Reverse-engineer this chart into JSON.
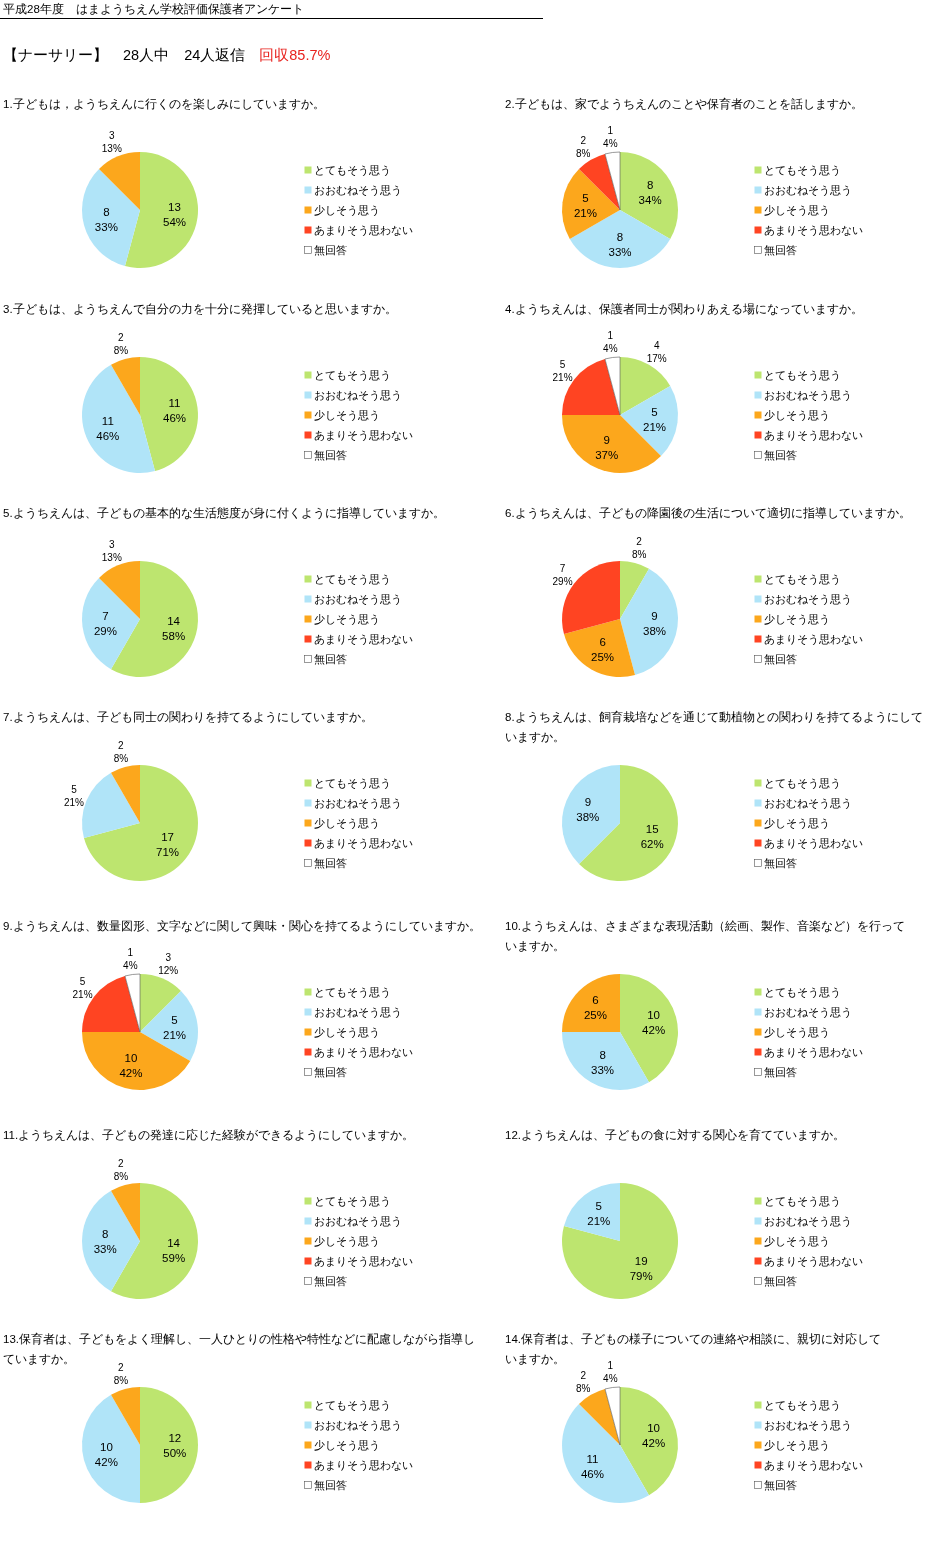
{
  "chart_data": [
    {
      "type": "other",
      "title": "平成28年度　はまようちえん学校評価保護者アンケート",
      "subtitle": "【ナーサリー】　28人中　24人返信",
      "annotations": [
        "回収85.7%"
      ]
    },
    {
      "type": "pie",
      "title": "1.子どもは，ようちえんに行くのを楽しみにしていますか。",
      "categories": [
        "とてもそう思う",
        "おおむねそう思う",
        "少しそう思う",
        "あまりそう思わない",
        "無回答"
      ],
      "values": [
        13,
        8,
        3,
        0,
        0
      ],
      "colors": [
        "#bde56f",
        "#b0e4f8",
        "#fca71c",
        "#ff4422",
        "#ffffff"
      ],
      "value_labels": [
        "13\n54%",
        "8\n33%",
        "3\n13%",
        null,
        null
      ],
      "legend": "right"
    },
    {
      "type": "pie",
      "title": "2.子どもは、家でようちえんのことや保育者のことを話しますか。",
      "categories": [
        "とてもそう思う",
        "おおむねそう思う",
        "少しそう思う",
        "あまりそう思わない",
        "無回答"
      ],
      "values": [
        8,
        8,
        5,
        2,
        1
      ],
      "colors": [
        "#bde56f",
        "#b0e4f8",
        "#fca71c",
        "#ff4422",
        "#ffffff"
      ],
      "value_labels": [
        "8\n34%",
        "8\n33%",
        "5\n21%",
        "2\n8%",
        "1\n4%"
      ],
      "legend": "right"
    },
    {
      "type": "pie",
      "title": "3.子どもは、ようちえんで自分の力を十分に発揮していると思いますか。",
      "categories": [
        "とてもそう思う",
        "おおむねそう思う",
        "少しそう思う",
        "あまりそう思わない",
        "無回答"
      ],
      "values": [
        11,
        11,
        2,
        0,
        0
      ],
      "colors": [
        "#bde56f",
        "#b0e4f8",
        "#fca71c",
        "#ff4422",
        "#ffffff"
      ],
      "value_labels": [
        "11\n46%",
        "11\n46%",
        "2\n8%",
        null,
        null
      ],
      "legend": "right"
    },
    {
      "type": "pie",
      "title": "4.ようちえんは、保護者同士が関わりあえる場になっていますか。",
      "categories": [
        "とてもそう思う",
        "おおむねそう思う",
        "少しそう思う",
        "あまりそう思わない",
        "無回答"
      ],
      "values": [
        4,
        5,
        9,
        5,
        1
      ],
      "colors": [
        "#bde56f",
        "#b0e4f8",
        "#fca71c",
        "#ff4422",
        "#ffffff"
      ],
      "value_labels": [
        "4\n17%",
        "5\n21%",
        "9\n37%",
        "5\n21%",
        "1\n4%"
      ],
      "legend": "right"
    },
    {
      "type": "pie",
      "title": "5.ようちえんは、子どもの基本的な生活態度が身に付くように指導していますか。",
      "categories": [
        "とてもそう思う",
        "おおむねそう思う",
        "少しそう思う",
        "あまりそう思わない",
        "無回答"
      ],
      "values": [
        14,
        7,
        3,
        0,
        0
      ],
      "colors": [
        "#bde56f",
        "#b0e4f8",
        "#fca71c",
        "#ff4422",
        "#ffffff"
      ],
      "value_labels": [
        "14\n58%",
        "7\n29%",
        "3\n13%",
        null,
        null
      ],
      "legend": "right"
    },
    {
      "type": "pie",
      "title": "6.ようちえんは、子どもの降園後の生活について適切に指導していますか。",
      "categories": [
        "とてもそう思う",
        "おおむねそう思う",
        "少しそう思う",
        "あまりそう思わない",
        "無回答"
      ],
      "values": [
        2,
        9,
        6,
        7,
        0
      ],
      "colors": [
        "#bde56f",
        "#b0e4f8",
        "#fca71c",
        "#ff4422",
        "#ffffff"
      ],
      "value_labels": [
        "2\n8%",
        "9\n38%",
        "6\n25%",
        "7\n29%",
        null
      ],
      "legend": "right"
    },
    {
      "type": "pie",
      "title": "7.ようちえんは、子ども同士の関わりを持てるようにしていますか。",
      "categories": [
        "とてもそう思う",
        "おおむねそう思う",
        "少しそう思う",
        "あまりそう思わない",
        "無回答"
      ],
      "values": [
        17,
        5,
        2,
        0,
        0
      ],
      "colors": [
        "#bde56f",
        "#b0e4f8",
        "#fca71c",
        "#ff4422",
        "#ffffff"
      ],
      "value_labels": [
        "17\n71%",
        "5\n21%",
        "2\n8%",
        null,
        null
      ],
      "legend": "right"
    },
    {
      "type": "pie",
      "title": "8.ようちえんは、飼育栽培などを通じて動植物との関わりを持てるようにしていますか。",
      "categories": [
        "とてもそう思う",
        "おおむねそう思う",
        "少しそう思う",
        "あまりそう思わない",
        "無回答"
      ],
      "values": [
        15,
        9,
        0,
        0,
        0
      ],
      "colors": [
        "#bde56f",
        "#b0e4f8",
        "#fca71c",
        "#ff4422",
        "#ffffff"
      ],
      "value_labels": [
        "15\n62%",
        "9\n38%",
        null,
        null,
        null
      ],
      "legend": "right"
    },
    {
      "type": "pie",
      "title": "9.ようちえんは、数量図形、文字などに関して興味・関心を持てるようにしていますか。",
      "categories": [
        "とてもそう思う",
        "おおむねそう思う",
        "少しそう思う",
        "あまりそう思わない",
        "無回答"
      ],
      "values": [
        3,
        5,
        10,
        5,
        1
      ],
      "colors": [
        "#bde56f",
        "#b0e4f8",
        "#fca71c",
        "#ff4422",
        "#ffffff"
      ],
      "value_labels": [
        "3\n12%",
        "5\n21%",
        "10\n42%",
        "5\n21%",
        "1\n4%"
      ],
      "legend": "right"
    },
    {
      "type": "pie",
      "title": "10.ようちえんは、さまざまな表現活動（絵画、製作、音楽など）を行っていますか。",
      "categories": [
        "とてもそう思う",
        "おおむねそう思う",
        "少しそう思う",
        "あまりそう思わない",
        "無回答"
      ],
      "values": [
        10,
        8,
        6,
        0,
        0
      ],
      "colors": [
        "#bde56f",
        "#b0e4f8",
        "#fca71c",
        "#ff4422",
        "#ffffff"
      ],
      "value_labels": [
        "10\n42%",
        "8\n33%",
        "6\n25%",
        null,
        null
      ],
      "legend": "right"
    },
    {
      "type": "pie",
      "title": "11.ようちえんは、子どもの発達に応じた経験ができるようにしていますか。",
      "categories": [
        "とてもそう思う",
        "おおむねそう思う",
        "少しそう思う",
        "あまりそう思わない",
        "無回答"
      ],
      "values": [
        14,
        8,
        2,
        0,
        0
      ],
      "colors": [
        "#bde56f",
        "#b0e4f8",
        "#fca71c",
        "#ff4422",
        "#ffffff"
      ],
      "value_labels": [
        "14\n59%",
        "8\n33%",
        "2\n8%",
        null,
        null
      ],
      "legend": "right"
    },
    {
      "type": "pie",
      "title": "12.ようちえんは、子どもの食に対する関心を育てていますか。",
      "categories": [
        "とてもそう思う",
        "おおむねそう思う",
        "少しそう思う",
        "あまりそう思わない",
        "無回答"
      ],
      "values": [
        19,
        5,
        0,
        0,
        0
      ],
      "colors": [
        "#bde56f",
        "#b0e4f8",
        "#fca71c",
        "#ff4422",
        "#ffffff"
      ],
      "value_labels": [
        "19\n79%",
        "5\n21%",
        null,
        null,
        null
      ],
      "legend": "right"
    },
    {
      "type": "pie",
      "title": "13.保育者は、子どもをよく理解し、一人ひとりの性格や特性などに配慮しながら指導していますか。",
      "categories": [
        "とてもそう思う",
        "おおむねそう思う",
        "少しそう思う",
        "あまりそう思わない",
        "無回答"
      ],
      "values": [
        12,
        10,
        2,
        0,
        0
      ],
      "colors": [
        "#bde56f",
        "#b0e4f8",
        "#fca71c",
        "#ff4422",
        "#ffffff"
      ],
      "value_labels": [
        "12\n50%",
        "10\n42%",
        "2\n8%",
        null,
        null
      ],
      "legend": "right"
    },
    {
      "type": "pie",
      "title": "14.保育者は、子どもの様子についての連絡や相談に、親切に対応していますか。",
      "categories": [
        "とてもそう思う",
        "おおむねそう思う",
        "少しそう思う",
        "あまりそう思わない",
        "無回答"
      ],
      "values": [
        10,
        11,
        2,
        0,
        1
      ],
      "colors": [
        "#bde56f",
        "#b0e4f8",
        "#fca71c",
        "#ff4422",
        "#ffffff"
      ],
      "value_labels": [
        "10\n42%",
        "11\n46%",
        "2\n8%",
        null,
        "1\n4%"
      ],
      "legend": "right"
    }
  ]
}
